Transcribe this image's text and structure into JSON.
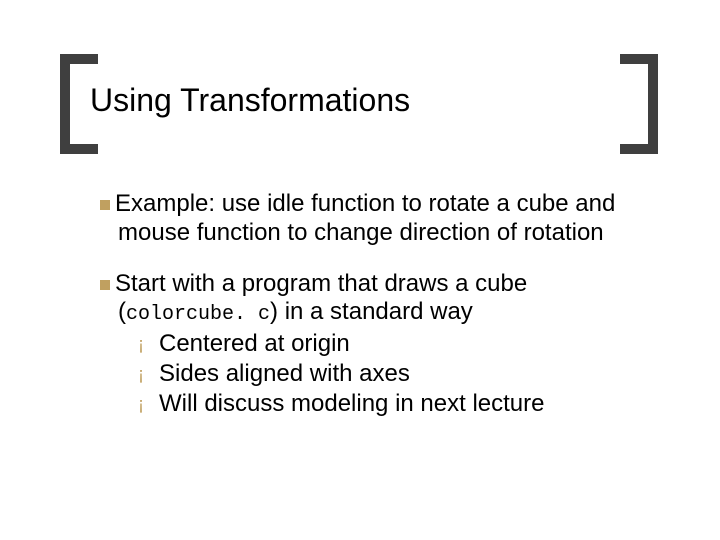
{
  "colors": {
    "background": "#ffffff",
    "text": "#000000",
    "bracket": "#3f3f3f",
    "bullet": "#c0a060"
  },
  "typography": {
    "title_fontsize": 32,
    "body_fontsize": 24,
    "mono_fontsize": 20,
    "font_family": "Arial",
    "mono_family": "Courier New"
  },
  "title": "Using Transformations",
  "items": [
    {
      "text": "Example: use idle function to rotate a cube and mouse function to change direction of rotation"
    },
    {
      "prefix": "Start with a program that draws a cube (",
      "code": "colorcube. c",
      "suffix": ") in a standard way",
      "sub": [
        "Centered at origin",
        "Sides aligned with axes",
        "Will discuss modeling in next lecture"
      ]
    }
  ]
}
